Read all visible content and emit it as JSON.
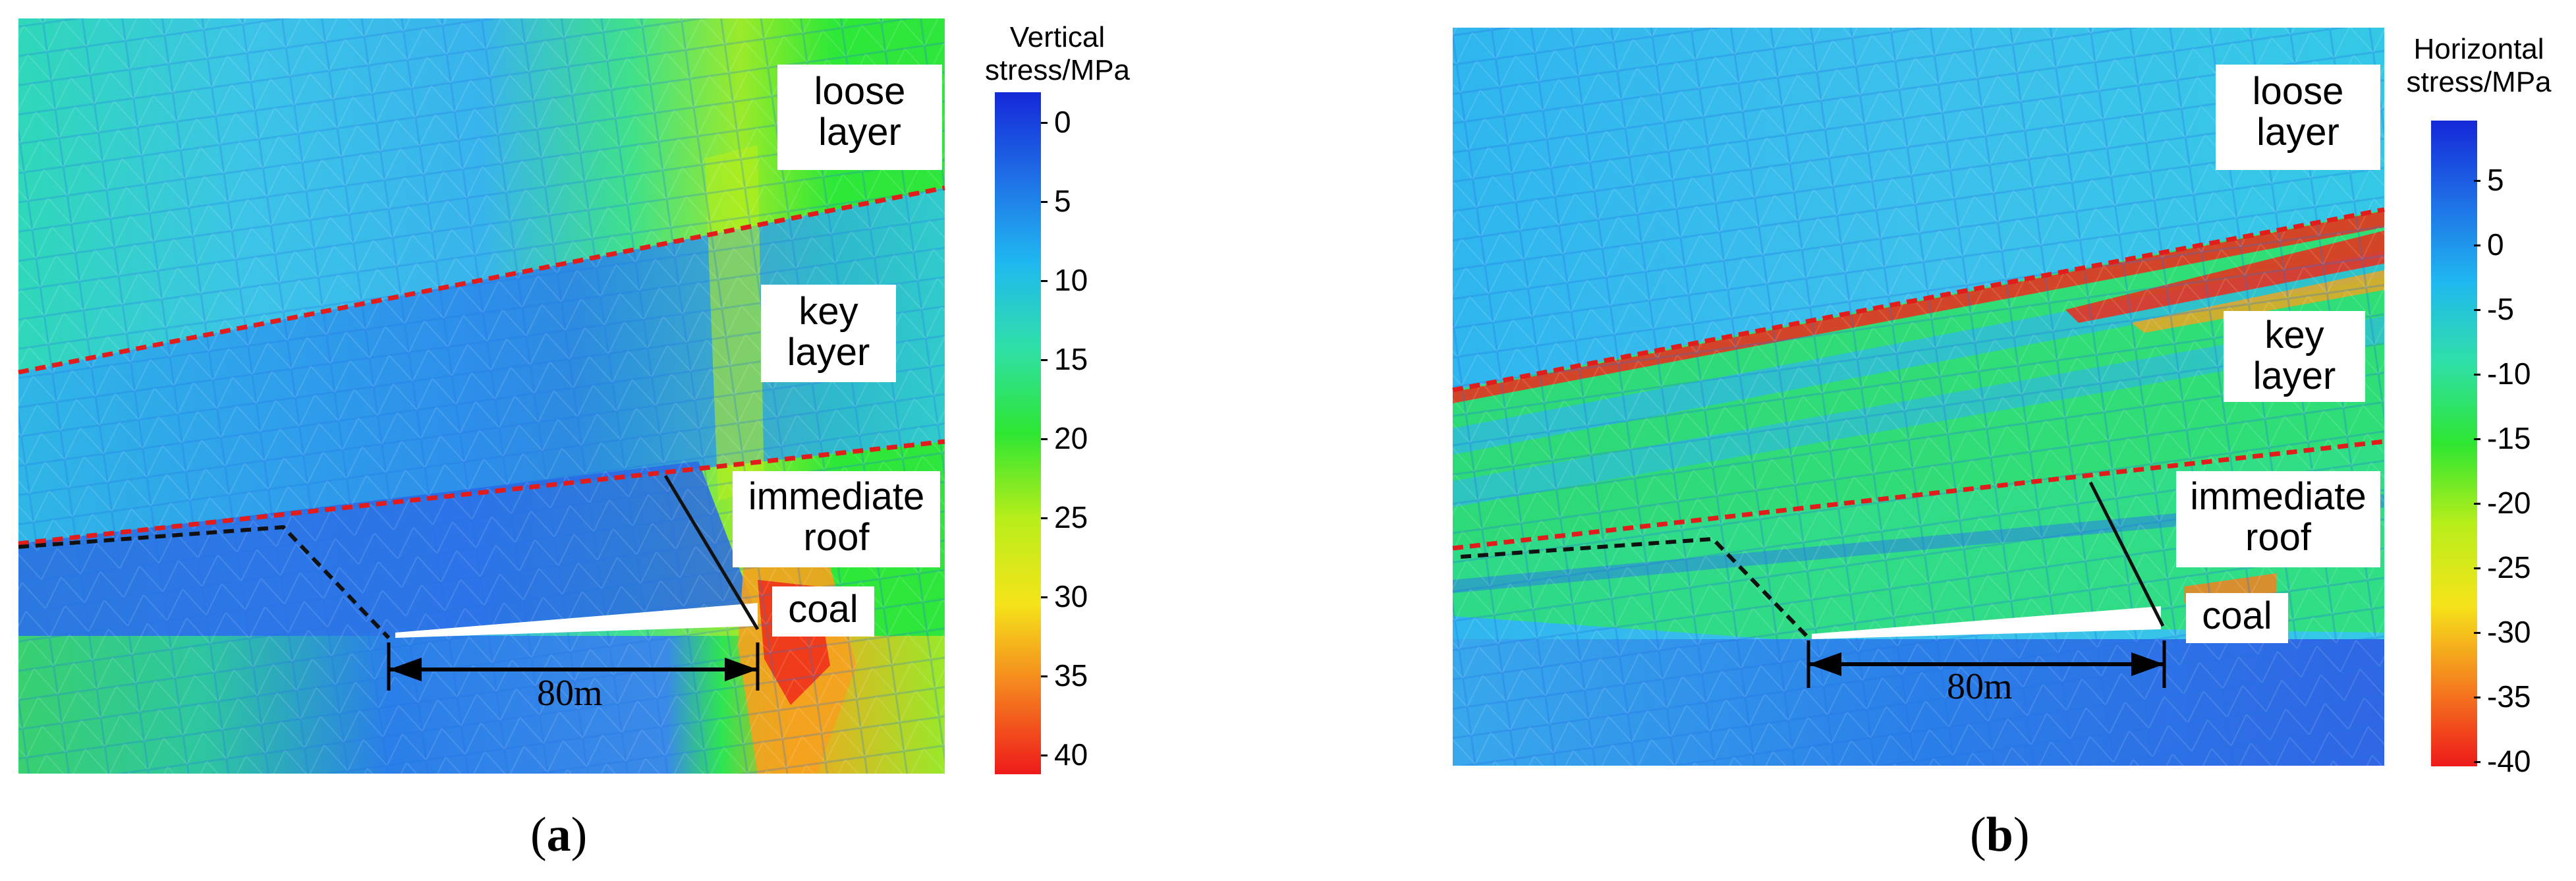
{
  "panels": [
    {
      "caption_letter": "a",
      "colorbar_title_line1": "Vertical",
      "colorbar_title_line2": "stress/MPa",
      "colorbar_ticks": [
        "0",
        "5",
        "10",
        "15",
        "20",
        "25",
        "30",
        "35",
        "40"
      ],
      "colorbar_colors": [
        "#1428d8",
        "#1f6fe6",
        "#1fb8f0",
        "#2fe0a8",
        "#2ee632",
        "#b8ee1a",
        "#f5e41a",
        "#f5801e",
        "#ee1a1a"
      ],
      "labels": {
        "loose": [
          "loose",
          "layer"
        ],
        "key": [
          "key",
          "layer"
        ],
        "immediate": [
          "immediate",
          "roof"
        ],
        "coal": "coal"
      },
      "dimension": "80m"
    },
    {
      "caption_letter": "b",
      "colorbar_title_line1": "Horizontal",
      "colorbar_title_line2": "stress/MPa",
      "colorbar_ticks": [
        "5",
        "0",
        "-5",
        "-10",
        "-15",
        "-20",
        "-25",
        "-30",
        "-35",
        "-40"
      ],
      "colorbar_colors": [
        "#1428d8",
        "#1f6fe6",
        "#1fb8f0",
        "#2fe0a8",
        "#2ee632",
        "#b8ee1a",
        "#f5e41a",
        "#f5801e",
        "#ee1a1a"
      ],
      "labels": {
        "loose": [
          "loose",
          "layer"
        ],
        "key": [
          "key",
          "layer"
        ],
        "immediate": [
          "immediate",
          "roof"
        ],
        "coal": "coal"
      },
      "dimension": "80m"
    }
  ]
}
